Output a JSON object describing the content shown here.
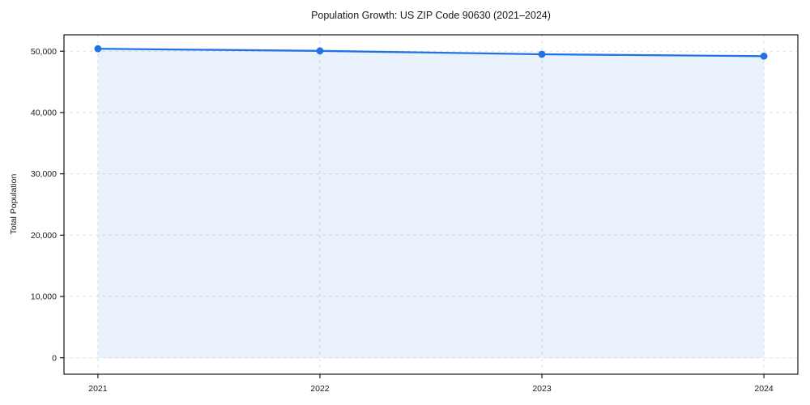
{
  "chart_data": {
    "type": "area",
    "title": "Population Growth: US ZIP Code 90630 (2021–2024)",
    "xlabel": "",
    "ylabel": "Total Population",
    "x": [
      2021,
      2022,
      2023,
      2024
    ],
    "x_tick_labels": [
      "2021",
      "2022",
      "2023",
      "2024"
    ],
    "series": [
      {
        "name": "Total Population",
        "values": [
          50400,
          50050,
          49500,
          49200
        ]
      }
    ],
    "y_ticks": [
      0,
      10000,
      20000,
      30000,
      40000,
      50000
    ],
    "y_tick_labels": [
      "0",
      "10,000",
      "20,000",
      "30,000",
      "40,000",
      "50,000"
    ],
    "xlim": [
      2020.847,
      2024.153
    ],
    "ylim": [
      -2680,
      52670
    ],
    "grid": "dashed-both-axes",
    "legend_position": "none",
    "fill_to_y": 0,
    "colors": {
      "line": "#2172e5",
      "marker": "#2172e5",
      "fill": "#2172e5",
      "fill_opacity": 0.1,
      "grid": "#d9d9d9",
      "axis": "#000000",
      "text": "#1a1a1a",
      "background": "#ffffff"
    }
  }
}
